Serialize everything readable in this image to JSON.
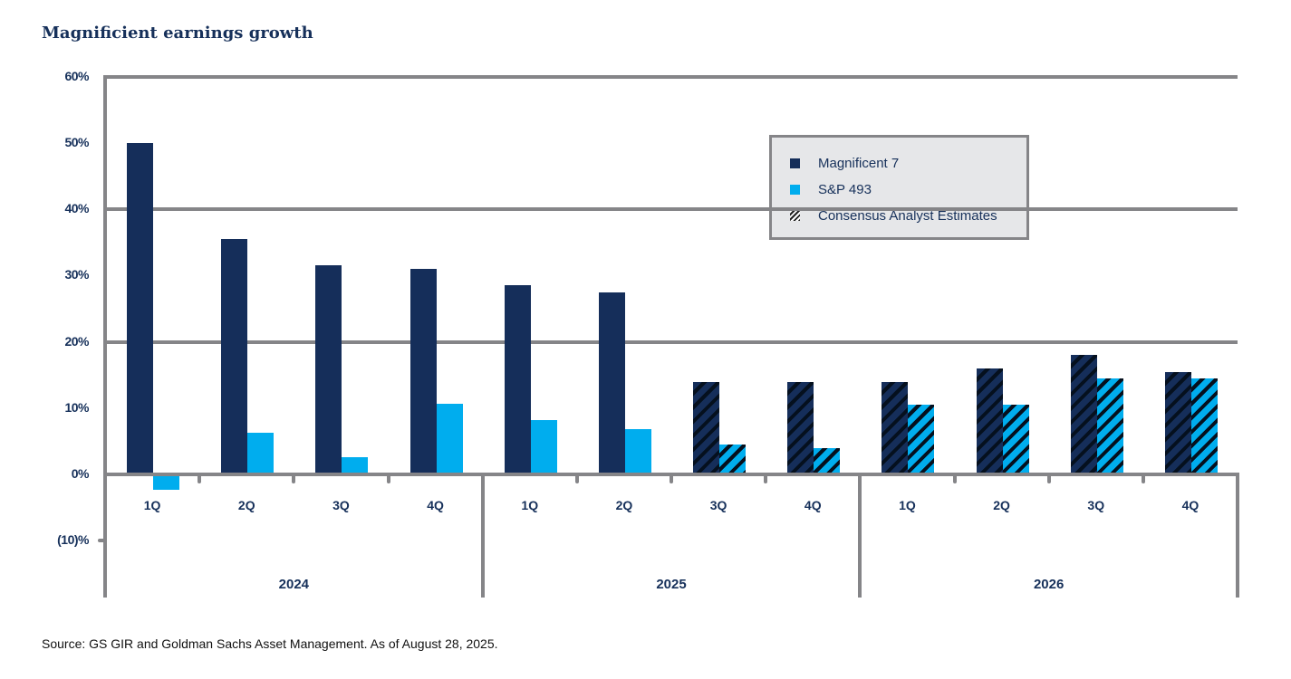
{
  "title": "Magnificient earnings growth",
  "source": "Source: GS GIR and Goldman Sachs Asset Management. As of August 28, 2025.",
  "colors": {
    "m7": "#152e5a",
    "sp493": "#00adee",
    "grid": "#858588",
    "text": "#16305a"
  },
  "yaxis": {
    "ticks": [
      "60%",
      "50%",
      "40%",
      "30%",
      "20%",
      "10%",
      "0%",
      "(10)%"
    ]
  },
  "legend": {
    "items": [
      {
        "label": "Magnificent 7",
        "swatch": "square-navy"
      },
      {
        "label": "S&P 493",
        "swatch": "square-cyan"
      },
      {
        "label": "Consensus Analyst Estimates",
        "swatch": "hatch-icon"
      }
    ]
  },
  "xaxis": {
    "quarters": [
      "1Q",
      "2Q",
      "3Q",
      "4Q",
      "1Q",
      "2Q",
      "3Q",
      "4Q",
      "1Q",
      "2Q",
      "3Q",
      "4Q"
    ],
    "years": [
      "2024",
      "2025",
      "2026"
    ]
  },
  "chart_data": {
    "type": "bar",
    "title": "Magnificient earnings growth",
    "xlabel": "",
    "ylabel": "",
    "ylim": [
      -10,
      60
    ],
    "yticks": [
      -10,
      0,
      10,
      20,
      30,
      40,
      50,
      60
    ],
    "grid": "horizontal at 20%, 40%, 60%",
    "legend_position": "upper right",
    "categories": [
      "2024 1Q",
      "2024 2Q",
      "2024 3Q",
      "2024 4Q",
      "2025 1Q",
      "2025 2Q",
      "2025 3Q",
      "2025 4Q",
      "2026 1Q",
      "2026 2Q",
      "2026 3Q",
      "2026 4Q"
    ],
    "series": [
      {
        "name": "Magnificent 7",
        "values": [
          50.0,
          35.5,
          31.5,
          31.0,
          28.5,
          27.5,
          14.0,
          14.0,
          14.0,
          16.0,
          18.0,
          15.5
        ]
      },
      {
        "name": "S&P 493",
        "values": [
          -2.0,
          6.3,
          2.6,
          10.7,
          8.2,
          6.8,
          4.5,
          4.0,
          10.5,
          10.5,
          14.5,
          14.5
        ]
      }
    ],
    "estimates_start_index": 6,
    "annotations": [
      "Consensus Analyst Estimates shown as hatched bars (2025 3Q onward)"
    ]
  }
}
